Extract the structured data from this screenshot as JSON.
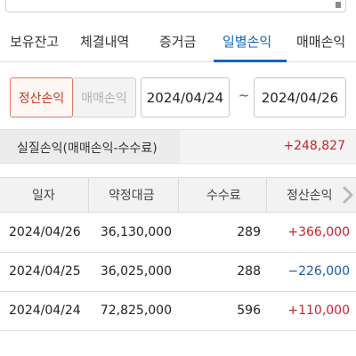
{
  "tabs": [
    {
      "label": "보유잔고"
    },
    {
      "label": "체결내역"
    },
    {
      "label": "증거금"
    },
    {
      "label": "일별손익"
    },
    {
      "label": "매매손익"
    }
  ],
  "active_tab": "일별손익",
  "segment": {
    "active": "정산손익",
    "inactive": "매매손익"
  },
  "date_range": {
    "start": "2024/04/24",
    "separator": "~",
    "end": "2024/04/26"
  },
  "summary": {
    "label": "실질손익(매매손익-수수료)",
    "value": "+248,827"
  },
  "table": {
    "headers": [
      "일자",
      "약정대금",
      "수수료",
      "정산손익"
    ],
    "rows": [
      {
        "date": "2024/04/26",
        "amount": "36,130,000",
        "fee": "289",
        "pnl": "+366,000",
        "sign": "positive"
      },
      {
        "date": "2024/04/25",
        "amount": "36,025,000",
        "fee": "288",
        "pnl": "−226,000",
        "sign": "negative"
      },
      {
        "date": "2024/04/24",
        "amount": "72,825,000",
        "fee": "596",
        "pnl": "+110,000",
        "sign": "positive"
      }
    ]
  },
  "colors": {
    "accent": "#1467b9",
    "positive": "#c8232c",
    "negative": "#1a5aa8",
    "segment_active": "#c23b22"
  },
  "icons": {
    "scroll_right": "chevron-right-icon"
  }
}
